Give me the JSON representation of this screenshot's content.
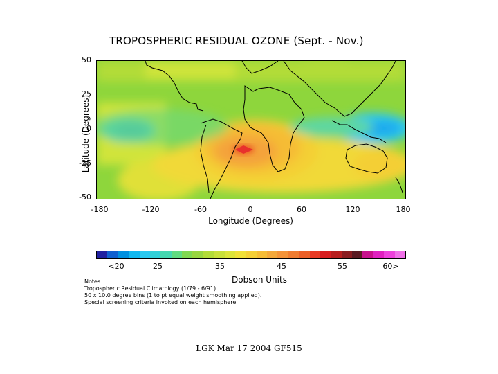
{
  "map": {
    "title": "TROPOSPHERIC RESIDUAL OZONE (Sept. - Nov.)",
    "ylabel": "Latitude (Degrees)",
    "xlabel": "Longitude (Degrees)",
    "lat_ticks": [
      "50",
      "25",
      "0",
      "-25",
      "-50"
    ],
    "lon_ticks": [
      "-180",
      "-120",
      "-60",
      "0",
      "60",
      "120",
      "180"
    ],
    "lat_range": [
      -50,
      50
    ],
    "lon_range": [
      -180,
      180
    ],
    "colors": {
      "low": "#0090e0",
      "mid_low": "#29c8f0",
      "cyan_green": "#5fd7a0",
      "green": "#8ed63c",
      "yellow_green": "#cfe43a",
      "yellow": "#f1d938",
      "orange": "#f4a33a",
      "red": "#e8312c"
    }
  },
  "colorbar": {
    "colors": [
      "#2020a0",
      "#1060d0",
      "#0090e0",
      "#10b8f0",
      "#29c8f0",
      "#30d0d8",
      "#45d8b0",
      "#60dc80",
      "#80d850",
      "#98d640",
      "#b2dc38",
      "#c8e03a",
      "#dce43a",
      "#f0e038",
      "#f4cf36",
      "#f5bc36",
      "#f4a83a",
      "#f49338",
      "#f07c30",
      "#ec6028",
      "#e83a24",
      "#d81e20",
      "#b81e1e",
      "#8a1c20",
      "#5a1a22",
      "#c8108c",
      "#e020c0",
      "#ee40dc",
      "#f070e8"
    ],
    "labels": [
      "<20",
      "25",
      "35",
      "45",
      "55",
      "60>"
    ],
    "units": "Dobson Units"
  },
  "notes": {
    "heading": "Notes:",
    "line1": "Tropospheric Residual Climatology (1/79 - 6/91).",
    "line2": "50 x 10.0 degree bins (1 to pt equal weight smoothing applied).",
    "line3": "Special screening criteria invoked on each hemisphere."
  },
  "footer": "LGK Mar 17 2004 GF515"
}
